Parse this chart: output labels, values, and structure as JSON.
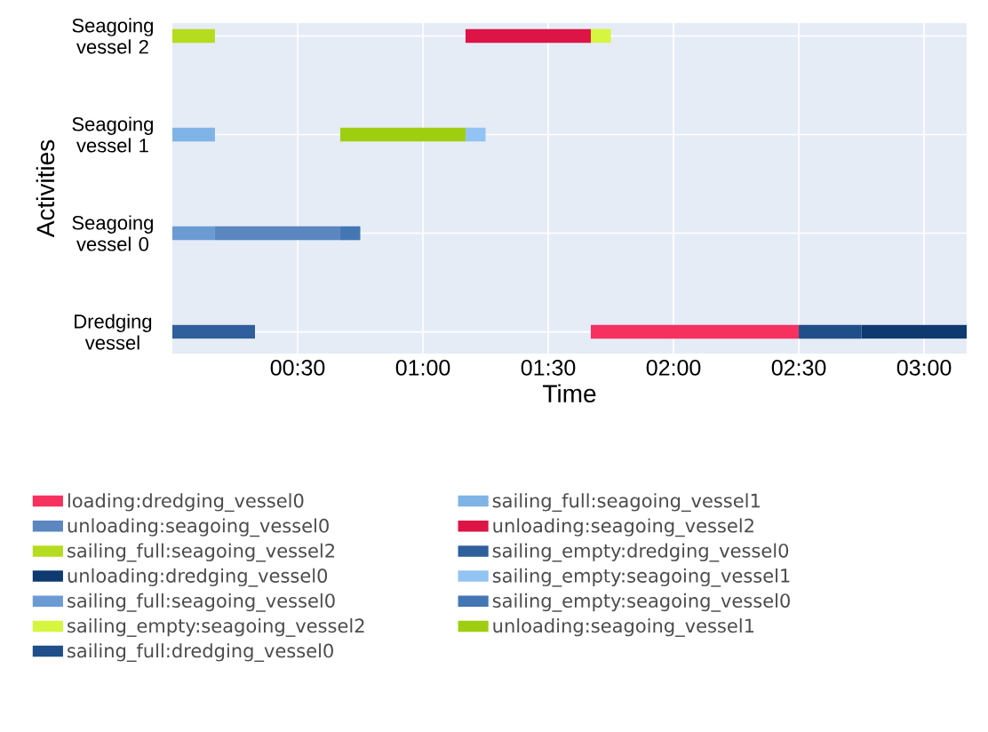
{
  "chart_data": {
    "type": "bar",
    "orientation": "horizontal",
    "xlabel": "Time",
    "ylabel": "Activities",
    "categories": [
      "Seagoing vessel 2",
      "Seagoing vessel 1",
      "Seagoing vessel 0",
      "Dredging vessel"
    ],
    "xlim": [
      0,
      3.17
    ],
    "xticks": [
      {
        "value": 0.5,
        "label": "00:30"
      },
      {
        "value": 1,
        "label": "01:00"
      },
      {
        "value": 1.5,
        "label": "01:30"
      },
      {
        "value": 2,
        "label": "02:00"
      },
      {
        "value": 2.5,
        "label": "02:30"
      },
      {
        "value": 3,
        "label": "03:00"
      }
    ],
    "grid": true,
    "legend": "bottom",
    "series": [
      {
        "name": "loading:dredging_vessel0",
        "color": "#f6305f",
        "values": [
          null,
          null,
          null,
          0.83
        ],
        "base": [
          null,
          null,
          null,
          1.67
        ]
      },
      {
        "name": "unloading:seagoing_vessel0",
        "color": "#5b86c0",
        "values": [
          null,
          null,
          0.5,
          null
        ],
        "base": [
          null,
          null,
          0.17,
          null
        ]
      },
      {
        "name": "sailing_full:seagoing_vessel2",
        "color": "#b5dc1e",
        "values": [
          0.17,
          null,
          null,
          null
        ],
        "base": [
          0,
          null,
          null,
          null
        ]
      },
      {
        "name": "unloading:dredging_vessel0",
        "color": "#0e3a70",
        "values": [
          null,
          null,
          null,
          0.42
        ],
        "base": [
          null,
          null,
          null,
          2.75
        ]
      },
      {
        "name": "sailing_full:seagoing_vessel0",
        "color": "#6c9bd4",
        "values": [
          null,
          null,
          0.17,
          null
        ],
        "base": [
          null,
          null,
          0,
          null
        ]
      },
      {
        "name": "sailing_empty:seagoing_vessel2",
        "color": "#d6f53f",
        "values": [
          0.08,
          null,
          null,
          null
        ],
        "base": [
          1.67,
          null,
          null,
          null
        ]
      },
      {
        "name": "sailing_full:dredging_vessel0",
        "color": "#1f4e89",
        "values": [
          null,
          null,
          null,
          0.25
        ],
        "base": [
          null,
          null,
          null,
          2.5
        ]
      },
      {
        "name": "sailing_full:seagoing_vessel1",
        "color": "#80b3e6",
        "values": [
          null,
          0.17,
          null,
          null
        ],
        "base": [
          null,
          0,
          null,
          null
        ]
      },
      {
        "name": "unloading:seagoing_vessel2",
        "color": "#dd1446",
        "values": [
          0.5,
          null,
          null,
          null
        ],
        "base": [
          1.17,
          null,
          null,
          null
        ]
      },
      {
        "name": "sailing_empty:dredging_vessel0",
        "color": "#2f5f9c",
        "values": [
          null,
          null,
          null,
          0.33
        ],
        "base": [
          null,
          null,
          null,
          0
        ]
      },
      {
        "name": "sailing_empty:seagoing_vessel1",
        "color": "#93c3f3",
        "values": [
          null,
          0.08,
          null,
          null
        ],
        "base": [
          null,
          1.17,
          null,
          null
        ]
      },
      {
        "name": "sailing_empty:seagoing_vessel0",
        "color": "#4576b4",
        "values": [
          null,
          null,
          0.08,
          null
        ],
        "base": [
          null,
          null,
          0.67,
          null
        ]
      },
      {
        "name": "unloading:seagoing_vessel1",
        "color": "#9fce10",
        "values": [
          null,
          0.5,
          null,
          null
        ],
        "base": [
          null,
          0.67,
          null,
          null
        ]
      }
    ]
  }
}
